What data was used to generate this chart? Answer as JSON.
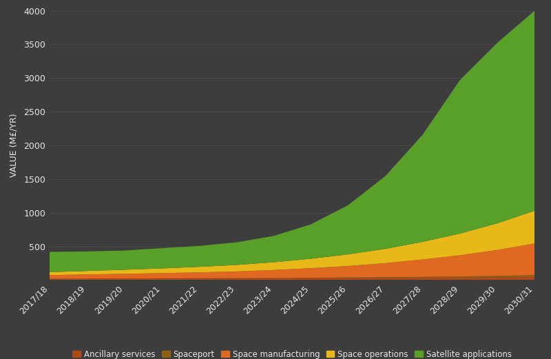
{
  "years": [
    "2017/18",
    "2018/19",
    "2019/20",
    "2020/21",
    "2021/22",
    "2022/23",
    "2023/24",
    "2024/25",
    "2025/26",
    "2026/27",
    "2027/28",
    "2028/29",
    "2029/30",
    "2030/31"
  ],
  "ancillary_services": [
    15,
    17,
    19,
    20,
    21,
    22,
    24,
    26,
    28,
    30,
    33,
    36,
    40,
    45
  ],
  "spaceport": [
    3,
    4,
    4,
    5,
    5,
    6,
    7,
    8,
    9,
    11,
    14,
    17,
    22,
    28
  ],
  "space_manufacturing": [
    55,
    62,
    70,
    78,
    88,
    100,
    118,
    142,
    172,
    210,
    258,
    315,
    385,
    470
  ],
  "space_operations": [
    45,
    52,
    60,
    70,
    82,
    96,
    115,
    140,
    172,
    212,
    262,
    322,
    395,
    485
  ],
  "satellite_applications": [
    300,
    290,
    285,
    300,
    310,
    335,
    390,
    510,
    730,
    1080,
    1590,
    2280,
    2680,
    2972
  ],
  "colors": {
    "ancillary_services": "#b04818",
    "spaceport": "#906010",
    "space_manufacturing": "#e06820",
    "space_operations": "#e8b818",
    "satellite_applications": "#58a028"
  },
  "legend_labels": [
    "Ancillary services",
    "Spaceport",
    "Space manufacturing",
    "Space operations",
    "Satellite applications"
  ],
  "ylabel": "VALUE (M£/YR)",
  "ylim": [
    0,
    4000
  ],
  "yticks": [
    500,
    1000,
    1500,
    2000,
    2500,
    3000,
    3500,
    4000
  ],
  "background_color": "#3d3d3d",
  "plot_background_color": "#3d3d3d",
  "text_color": "#e8e8e8",
  "grid_color": "#606060",
  "figsize": [
    8.0,
    5.21
  ],
  "dpi": 100,
  "legend_fontsize": 8.5,
  "axis_fontsize": 9,
  "ylabel_fontsize": 9
}
